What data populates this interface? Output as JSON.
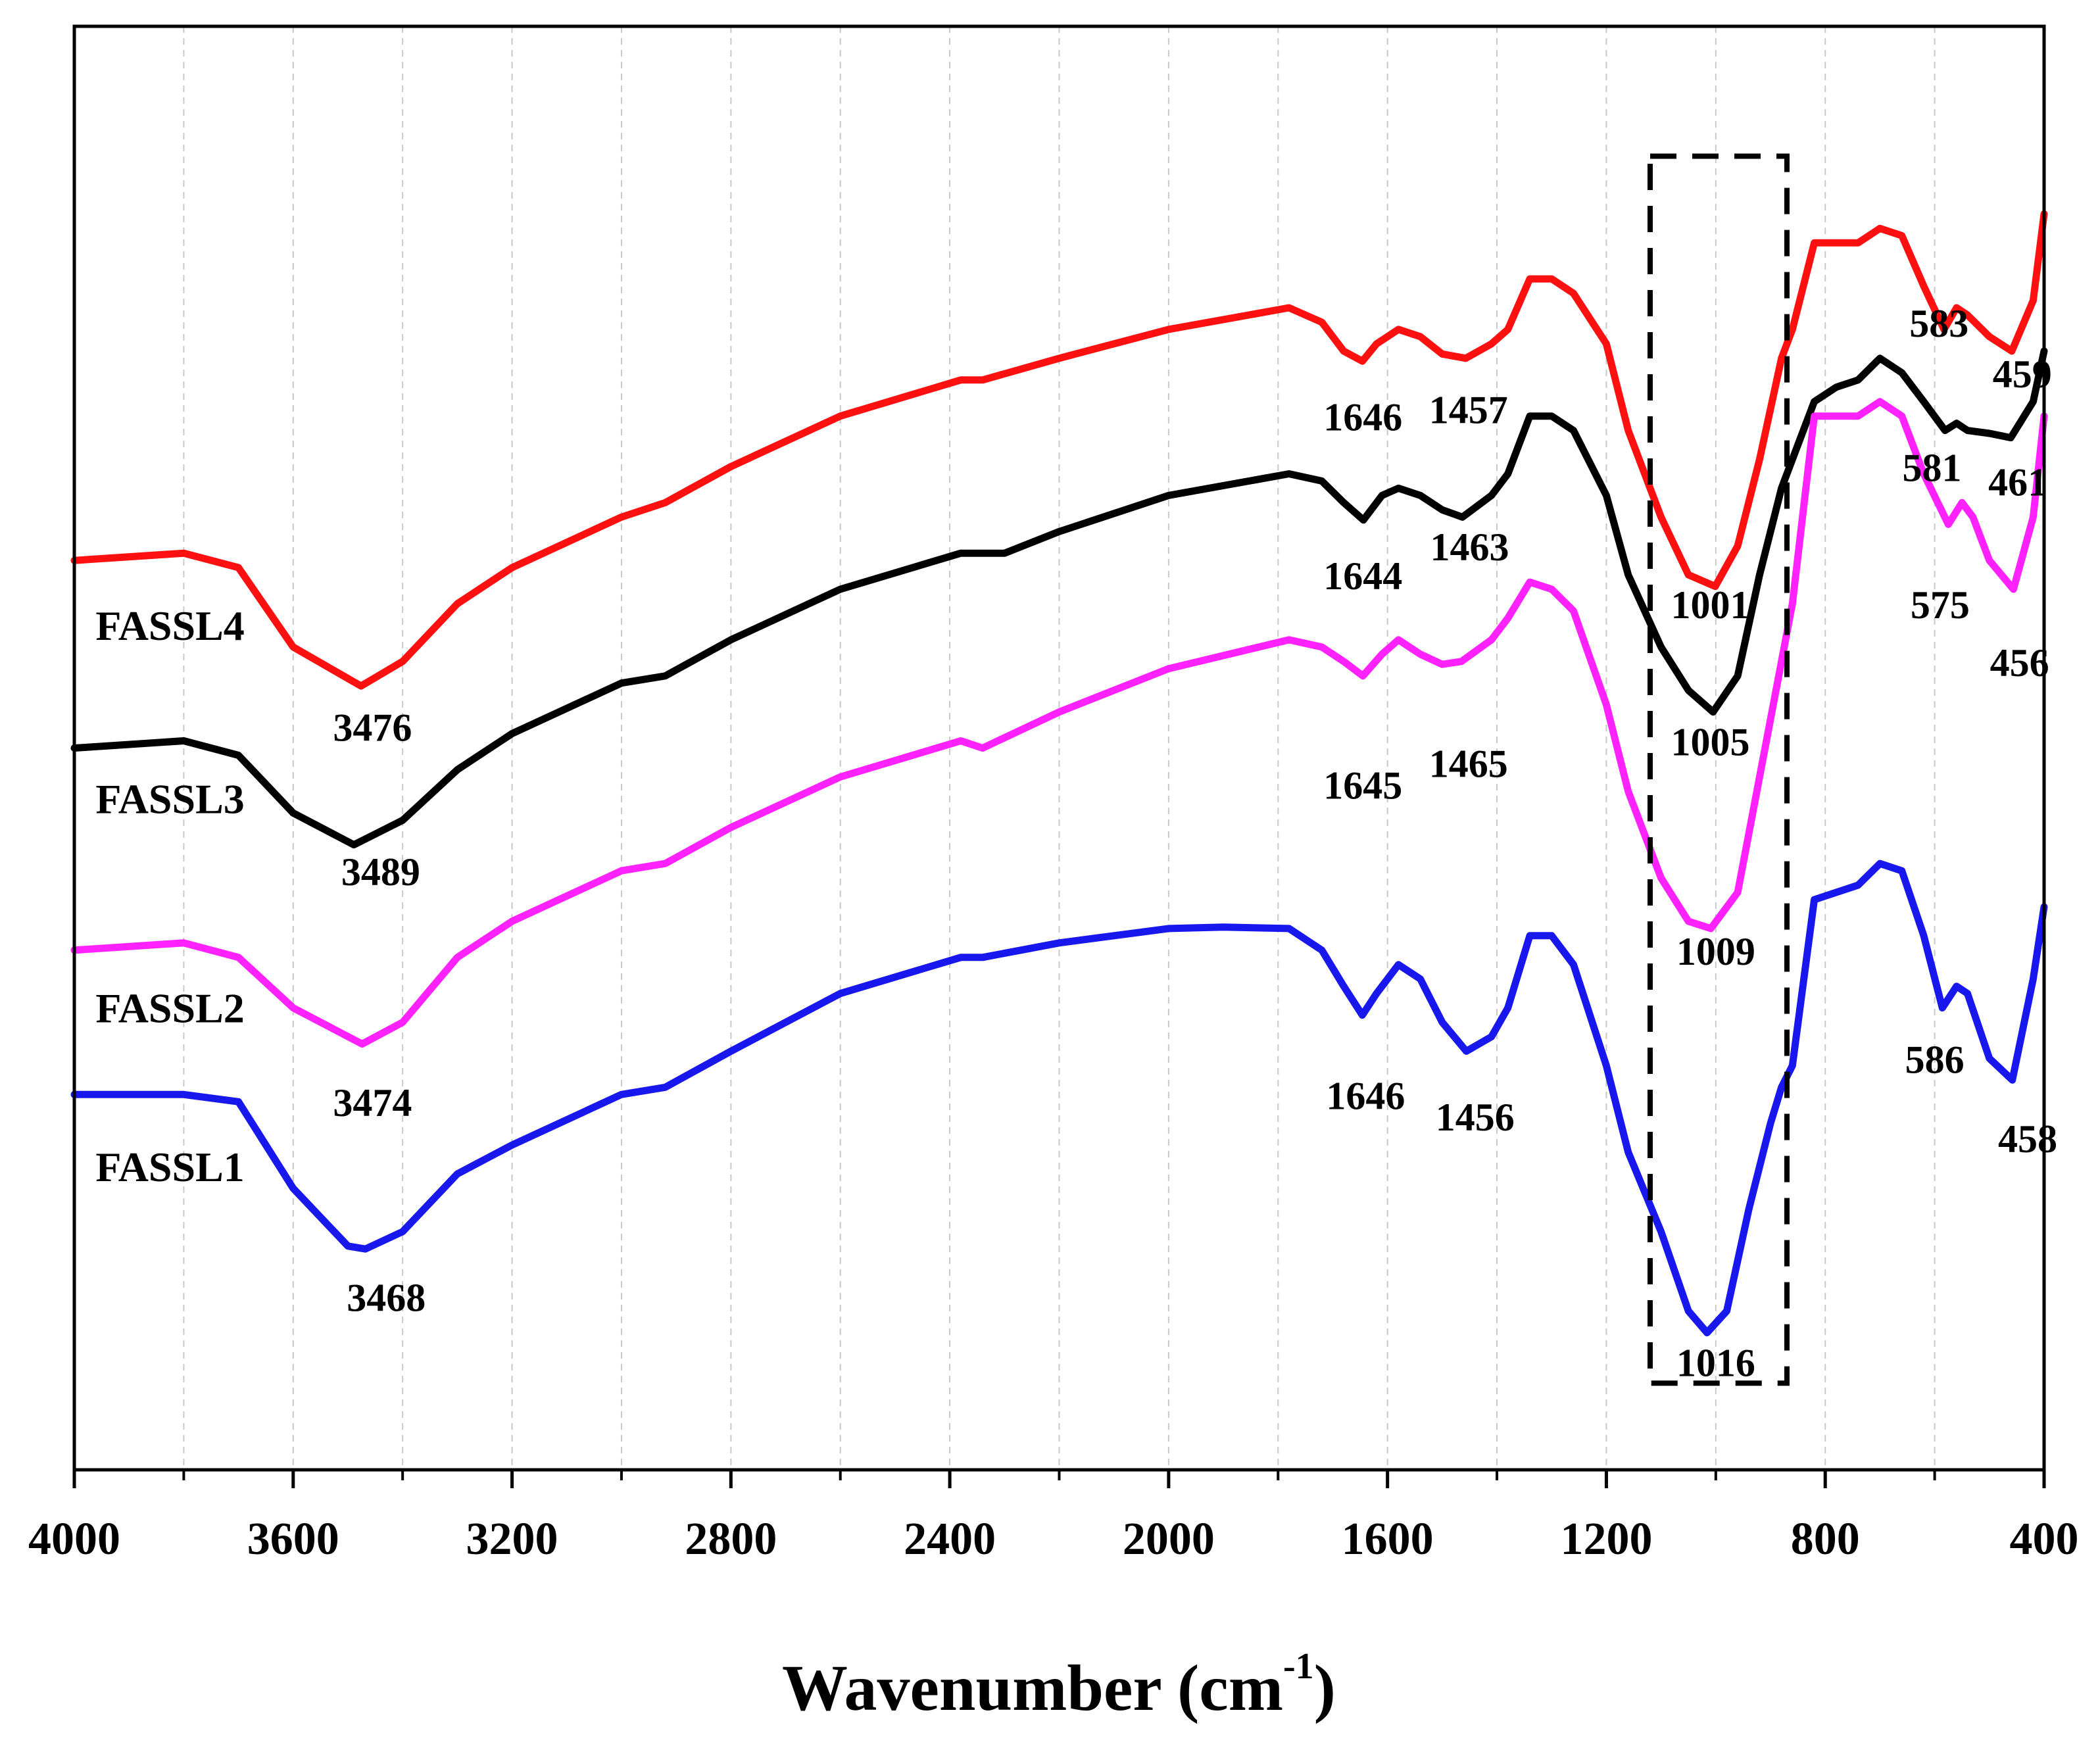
{
  "chart_data": {
    "type": "line",
    "title": "",
    "xlabel": "Wavenumber (cm",
    "xlabel_superscript": "-1",
    "xlabel_close": ")",
    "ylabel": "",
    "xlim": [
      4000,
      400
    ],
    "x_reversed": true,
    "ylim": [
      0,
      100
    ],
    "grid": "vertical dashed",
    "x_ticks": [
      4000,
      3600,
      3200,
      2800,
      2400,
      2000,
      1600,
      1200,
      800,
      400
    ],
    "x_tick_labels": [
      "4000",
      "3600",
      "3200",
      "2800",
      "2400",
      "2000",
      "1600",
      "1200",
      "800",
      "400"
    ],
    "highlight_box": {
      "x_range": [
        1120,
        870
      ],
      "y_range": [
        6,
        91
      ],
      "style": "dashed"
    },
    "series": [
      {
        "name": "FASSL4",
        "color": "#ff1010",
        "points": [
          [
            4000,
            63
          ],
          [
            3800,
            63.5
          ],
          [
            3700,
            62.5
          ],
          [
            3600,
            57
          ],
          [
            3476,
            54.3
          ],
          [
            3400,
            56
          ],
          [
            3300,
            60
          ],
          [
            3200,
            62.5
          ],
          [
            3000,
            66
          ],
          [
            2920,
            67
          ],
          [
            2800,
            69.5
          ],
          [
            2600,
            73
          ],
          [
            2380,
            75.5
          ],
          [
            2340,
            75.5
          ],
          [
            2200,
            77
          ],
          [
            2000,
            79
          ],
          [
            1780,
            80.5
          ],
          [
            1720,
            79.5
          ],
          [
            1680,
            77.5
          ],
          [
            1646,
            76.8
          ],
          [
            1620,
            78
          ],
          [
            1580,
            79
          ],
          [
            1540,
            78.5
          ],
          [
            1500,
            77.3
          ],
          [
            1457,
            77
          ],
          [
            1410,
            78
          ],
          [
            1380,
            79
          ],
          [
            1340,
            82.5
          ],
          [
            1300,
            82.5
          ],
          [
            1260,
            81.5
          ],
          [
            1200,
            78
          ],
          [
            1160,
            72
          ],
          [
            1100,
            66
          ],
          [
            1050,
            62
          ],
          [
            1001,
            61.2
          ],
          [
            960,
            64
          ],
          [
            920,
            70
          ],
          [
            880,
            77
          ],
          [
            860,
            79
          ],
          [
            820,
            85
          ],
          [
            780,
            85
          ],
          [
            740,
            85
          ],
          [
            700,
            86
          ],
          [
            660,
            85.5
          ],
          [
            620,
            82
          ],
          [
            583,
            79
          ],
          [
            560,
            80.5
          ],
          [
            540,
            80
          ],
          [
            500,
            78.5
          ],
          [
            459,
            77.5
          ],
          [
            420,
            81
          ],
          [
            400,
            87
          ]
        ]
      },
      {
        "name": "FASSL3",
        "color": "#000000",
        "points": [
          [
            4000,
            50
          ],
          [
            3800,
            50.5
          ],
          [
            3700,
            49.5
          ],
          [
            3600,
            45.5
          ],
          [
            3489,
            43.3
          ],
          [
            3400,
            45
          ],
          [
            3300,
            48.5
          ],
          [
            3200,
            51
          ],
          [
            3000,
            54.5
          ],
          [
            2920,
            55
          ],
          [
            2800,
            57.5
          ],
          [
            2600,
            61
          ],
          [
            2380,
            63.5
          ],
          [
            2300,
            63.5
          ],
          [
            2200,
            65
          ],
          [
            2000,
            67.5
          ],
          [
            1780,
            69
          ],
          [
            1720,
            68.5
          ],
          [
            1680,
            67
          ],
          [
            1644,
            65.8
          ],
          [
            1610,
            67.5
          ],
          [
            1580,
            68
          ],
          [
            1540,
            67.5
          ],
          [
            1500,
            66.5
          ],
          [
            1463,
            66
          ],
          [
            1410,
            67.5
          ],
          [
            1380,
            69
          ],
          [
            1340,
            73
          ],
          [
            1300,
            73
          ],
          [
            1260,
            72
          ],
          [
            1200,
            67.5
          ],
          [
            1160,
            62
          ],
          [
            1100,
            57
          ],
          [
            1050,
            54
          ],
          [
            1005,
            52.5
          ],
          [
            960,
            55
          ],
          [
            920,
            62
          ],
          [
            880,
            68
          ],
          [
            860,
            70
          ],
          [
            820,
            74
          ],
          [
            780,
            75
          ],
          [
            740,
            75.5
          ],
          [
            700,
            77
          ],
          [
            660,
            76
          ],
          [
            620,
            74
          ],
          [
            581,
            72
          ],
          [
            560,
            72.5
          ],
          [
            540,
            72
          ],
          [
            500,
            71.8
          ],
          [
            461,
            71.5
          ],
          [
            420,
            74
          ],
          [
            400,
            77.5
          ]
        ]
      },
      {
        "name": "FASSL2",
        "color": "#ff22ff",
        "points": [
          [
            4000,
            36
          ],
          [
            3800,
            36.5
          ],
          [
            3700,
            35.5
          ],
          [
            3600,
            32
          ],
          [
            3474,
            29.5
          ],
          [
            3400,
            31
          ],
          [
            3300,
            35.5
          ],
          [
            3200,
            38
          ],
          [
            3000,
            41.5
          ],
          [
            2920,
            42
          ],
          [
            2800,
            44.5
          ],
          [
            2600,
            48
          ],
          [
            2380,
            50.5
          ],
          [
            2340,
            50
          ],
          [
            2200,
            52.5
          ],
          [
            2000,
            55.5
          ],
          [
            1780,
            57.5
          ],
          [
            1720,
            57
          ],
          [
            1680,
            56
          ],
          [
            1645,
            55
          ],
          [
            1610,
            56.5
          ],
          [
            1580,
            57.5
          ],
          [
            1540,
            56.5
          ],
          [
            1500,
            55.8
          ],
          [
            1465,
            56
          ],
          [
            1410,
            57.5
          ],
          [
            1380,
            59
          ],
          [
            1340,
            61.5
          ],
          [
            1300,
            61
          ],
          [
            1260,
            59.5
          ],
          [
            1200,
            53
          ],
          [
            1160,
            47
          ],
          [
            1100,
            41
          ],
          [
            1050,
            38
          ],
          [
            1009,
            37.5
          ],
          [
            960,
            40
          ],
          [
            920,
            48
          ],
          [
            880,
            56
          ],
          [
            860,
            60
          ],
          [
            820,
            73
          ],
          [
            780,
            73
          ],
          [
            740,
            73
          ],
          [
            700,
            74
          ],
          [
            660,
            73
          ],
          [
            620,
            69
          ],
          [
            575,
            65.5
          ],
          [
            550,
            67
          ],
          [
            530,
            66
          ],
          [
            500,
            63
          ],
          [
            456,
            61
          ],
          [
            420,
            66
          ],
          [
            400,
            73
          ]
        ]
      },
      {
        "name": "FASSL1",
        "color": "#1818ee",
        "points": [
          [
            4000,
            26
          ],
          [
            3800,
            26
          ],
          [
            3700,
            25.5
          ],
          [
            3600,
            19.5
          ],
          [
            3500,
            15.5
          ],
          [
            3468,
            15.3
          ],
          [
            3400,
            16.5
          ],
          [
            3300,
            20.5
          ],
          [
            3200,
            22.5
          ],
          [
            3000,
            26
          ],
          [
            2920,
            26.5
          ],
          [
            2800,
            29
          ],
          [
            2600,
            33
          ],
          [
            2380,
            35.5
          ],
          [
            2340,
            35.5
          ],
          [
            2200,
            36.5
          ],
          [
            2000,
            37.5
          ],
          [
            1900,
            37.6
          ],
          [
            1780,
            37.5
          ],
          [
            1720,
            36
          ],
          [
            1680,
            33.5
          ],
          [
            1646,
            31.5
          ],
          [
            1620,
            33
          ],
          [
            1580,
            35
          ],
          [
            1540,
            34
          ],
          [
            1500,
            31
          ],
          [
            1456,
            29
          ],
          [
            1410,
            30
          ],
          [
            1380,
            32
          ],
          [
            1340,
            37
          ],
          [
            1300,
            37
          ],
          [
            1260,
            35
          ],
          [
            1200,
            28
          ],
          [
            1160,
            22
          ],
          [
            1100,
            16.5
          ],
          [
            1050,
            11
          ],
          [
            1016,
            9.5
          ],
          [
            980,
            11
          ],
          [
            940,
            18
          ],
          [
            900,
            24
          ],
          [
            880,
            26.5
          ],
          [
            860,
            28
          ],
          [
            820,
            39.5
          ],
          [
            780,
            40
          ],
          [
            740,
            40.5
          ],
          [
            700,
            42
          ],
          [
            660,
            41.5
          ],
          [
            620,
            37
          ],
          [
            586,
            32
          ],
          [
            560,
            33.5
          ],
          [
            540,
            33
          ],
          [
            500,
            28.5
          ],
          [
            458,
            27
          ],
          [
            420,
            34
          ],
          [
            400,
            39
          ]
        ]
      }
    ],
    "series_labels": [
      {
        "text": "FASSL4",
        "x": 3825,
        "y": 57.5
      },
      {
        "text": "FASSL3",
        "x": 3825,
        "y": 45.5
      },
      {
        "text": "FASSL2",
        "x": 3825,
        "y": 31
      },
      {
        "text": "FASSL1",
        "x": 3825,
        "y": 20
      }
    ],
    "annotations": [
      {
        "text": "3476",
        "x": 3455,
        "y": 50.5
      },
      {
        "text": "1646",
        "x": 1645,
        "y": 72
      },
      {
        "text": "1457",
        "x": 1452,
        "y": 72.5
      },
      {
        "text": "1001",
        "x": 1010,
        "y": 59
      },
      {
        "text": "583",
        "x": 592,
        "y": 78.5
      },
      {
        "text": "459",
        "x": 440,
        "y": 75
      },
      {
        "text": "3489",
        "x": 3440,
        "y": 40.5
      },
      {
        "text": "1644",
        "x": 1645,
        "y": 61
      },
      {
        "text": "1463",
        "x": 1450,
        "y": 63
      },
      {
        "text": "1005",
        "x": 1010,
        "y": 49.5
      },
      {
        "text": "581",
        "x": 605,
        "y": 68.5
      },
      {
        "text": "461",
        "x": 448,
        "y": 67.5
      },
      {
        "text": "3474",
        "x": 3455,
        "y": 24.5
      },
      {
        "text": "1645",
        "x": 1645,
        "y": 46.5
      },
      {
        "text": "1465",
        "x": 1452,
        "y": 48
      },
      {
        "text": "1009",
        "x": 1000,
        "y": 35
      },
      {
        "text": "575",
        "x": 590,
        "y": 59
      },
      {
        "text": "456",
        "x": 445,
        "y": 55
      },
      {
        "text": "3468",
        "x": 3430,
        "y": 11
      },
      {
        "text": "1646",
        "x": 1640,
        "y": 25
      },
      {
        "text": "1456",
        "x": 1440,
        "y": 23.5
      },
      {
        "text": "1016",
        "x": 1000,
        "y": 6.5
      },
      {
        "text": "586",
        "x": 600,
        "y": 27.5
      },
      {
        "text": "458",
        "x": 430,
        "y": 22
      }
    ]
  }
}
